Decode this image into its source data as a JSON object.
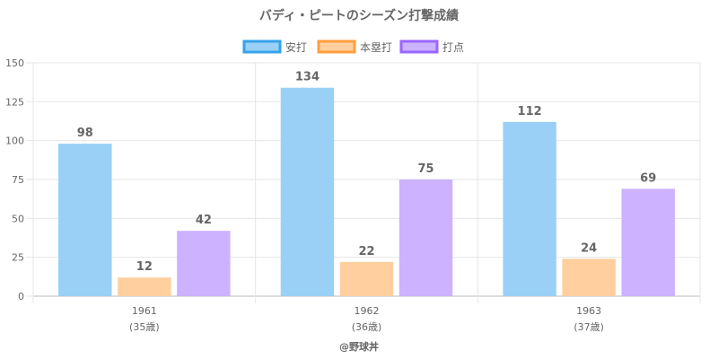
{
  "chart_data": {
    "type": "bar",
    "title": "バディ・ピートのシーズン打撃成績",
    "categories": [
      "1961",
      "1962",
      "1963"
    ],
    "category_sublabels": [
      "(35歳)",
      "(36歳)",
      "(37歳)"
    ],
    "series": [
      {
        "name": "安打",
        "values": [
          98,
          134,
          112
        ],
        "fill": "#9ad0f5",
        "stroke": "#36a2eb"
      },
      {
        "name": "本塁打",
        "values": [
          12,
          22,
          24
        ],
        "fill": "#ffcf9f",
        "stroke": "#ff9f40"
      },
      {
        "name": "打点",
        "values": [
          42,
          75,
          69
        ],
        "fill": "#ccb2ff",
        "stroke": "#9966ff"
      }
    ],
    "ylim": [
      0,
      150
    ],
    "yticks": [
      0,
      25,
      50,
      75,
      100,
      125,
      150
    ],
    "grid": true,
    "legend_position": "top"
  },
  "footer": "@野球丼"
}
